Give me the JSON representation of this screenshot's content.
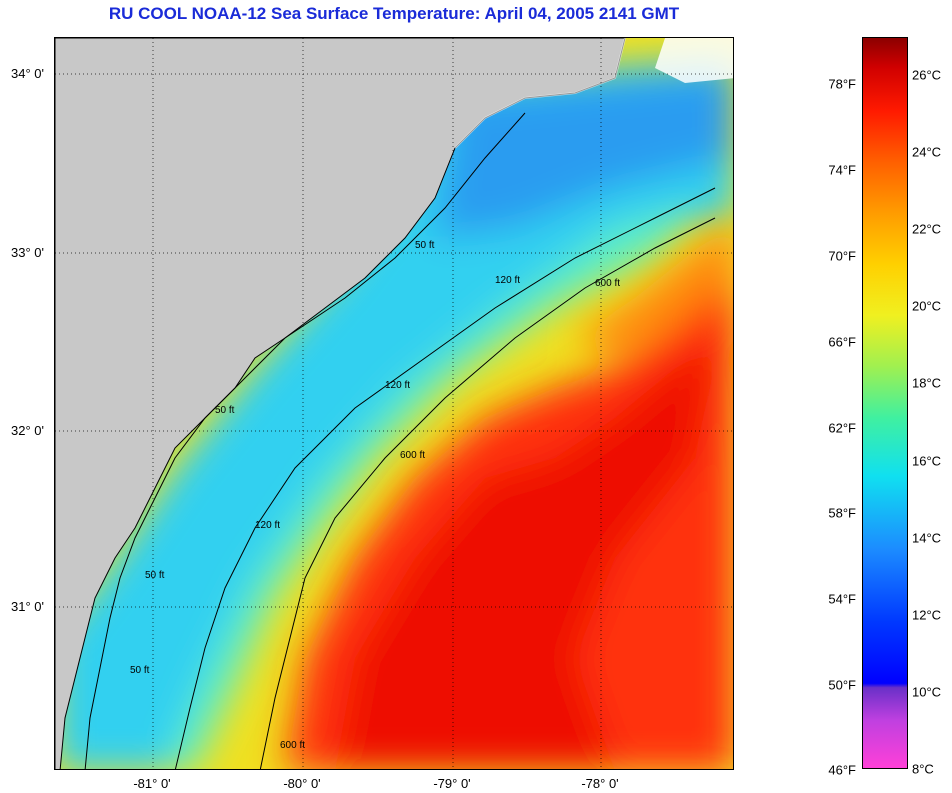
{
  "title": "RU COOL  NOAA-12  Sea Surface Temperature:  April 04, 2005 2141 GMT",
  "map": {
    "lat_labels": [
      "34° 0'",
      "33° 0'",
      "32° 0'",
      "31° 0'"
    ],
    "lon_labels": [
      "-81° 0'",
      "-80° 0'",
      "-79° 0'",
      "-78° 0'"
    ],
    "contours": [
      "50 ft",
      "120 ft",
      "600 ft"
    ],
    "colors": {
      "land": "#c8c8c8",
      "cold_shelf": "#30d0f0",
      "mid_shelf": "#60f0c0",
      "warm_slope": "#f0e020",
      "gulf_stream": "#ff3010",
      "gulf_core": "#ee1000"
    }
  },
  "colorbar": {
    "fahrenheit": [
      "78°F",
      "74°F",
      "70°F",
      "66°F",
      "62°F",
      "58°F",
      "54°F",
      "50°F",
      "46°F"
    ],
    "celsius": [
      "26°C",
      "24°C",
      "22°C",
      "20°C",
      "18°C",
      "16°C",
      "14°C",
      "12°C",
      "10°C",
      "8°C"
    ],
    "range_c": [
      8,
      27
    ]
  }
}
